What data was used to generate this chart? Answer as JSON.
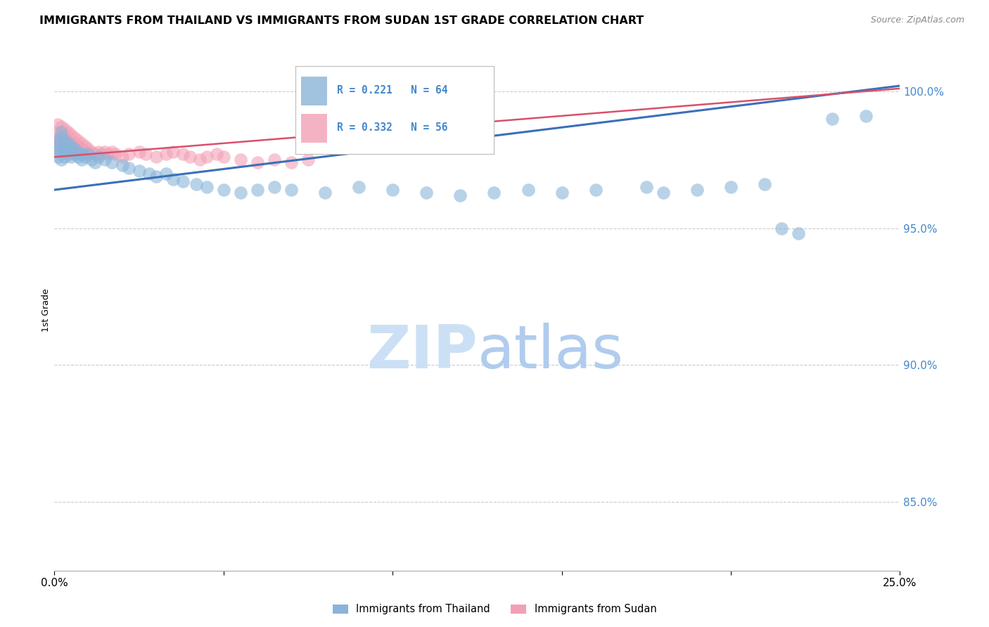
{
  "title": "IMMIGRANTS FROM THAILAND VS IMMIGRANTS FROM SUDAN 1ST GRADE CORRELATION CHART",
  "source": "Source: ZipAtlas.com",
  "ylabel": "1st Grade",
  "ytick_labels": [
    "85.0%",
    "90.0%",
    "95.0%",
    "100.0%"
  ],
  "ytick_values": [
    0.85,
    0.9,
    0.95,
    1.0
  ],
  "xlim": [
    0.0,
    0.25
  ],
  "ylim": [
    0.825,
    1.015
  ],
  "legend_thailand": "R = 0.221   N = 64",
  "legend_sudan": "R = 0.332   N = 56",
  "thailand_color": "#8ab4d9",
  "sudan_color": "#f2a0b5",
  "thailand_line_color": "#3a70b8",
  "sudan_line_color": "#d9506a",
  "watermark_zip": "ZIP",
  "watermark_atlas": "atlas",
  "watermark_color": "#cce0f5",
  "background_color": "#ffffff",
  "grid_color": "#cccccc",
  "right_axis_color": "#4488cc",
  "thailand_scatter_x": [
    0.001,
    0.001,
    0.001,
    0.001,
    0.002,
    0.002,
    0.002,
    0.002,
    0.003,
    0.003,
    0.003,
    0.003,
    0.004,
    0.004,
    0.004,
    0.005,
    0.005,
    0.005,
    0.006,
    0.006,
    0.007,
    0.007,
    0.008,
    0.008,
    0.009,
    0.01,
    0.011,
    0.012,
    0.013,
    0.015,
    0.017,
    0.02,
    0.022,
    0.025,
    0.028,
    0.03,
    0.033,
    0.035,
    0.038,
    0.042,
    0.045,
    0.05,
    0.055,
    0.06,
    0.065,
    0.07,
    0.08,
    0.09,
    0.1,
    0.11,
    0.12,
    0.13,
    0.14,
    0.15,
    0.16,
    0.175,
    0.18,
    0.19,
    0.2,
    0.21,
    0.215,
    0.22,
    0.23,
    0.24
  ],
  "thailand_scatter_y": [
    0.98,
    0.982,
    0.978,
    0.976,
    0.985,
    0.983,
    0.979,
    0.975,
    0.982,
    0.98,
    0.978,
    0.976,
    0.981,
    0.979,
    0.977,
    0.98,
    0.978,
    0.976,
    0.979,
    0.977,
    0.978,
    0.976,
    0.977,
    0.975,
    0.976,
    0.977,
    0.975,
    0.974,
    0.976,
    0.975,
    0.974,
    0.973,
    0.972,
    0.971,
    0.97,
    0.969,
    0.97,
    0.968,
    0.967,
    0.966,
    0.965,
    0.964,
    0.963,
    0.964,
    0.965,
    0.964,
    0.963,
    0.965,
    0.964,
    0.963,
    0.962,
    0.963,
    0.964,
    0.963,
    0.964,
    0.965,
    0.963,
    0.964,
    0.965,
    0.966,
    0.95,
    0.948,
    0.99,
    0.991
  ],
  "sudan_scatter_x": [
    0.001,
    0.001,
    0.001,
    0.001,
    0.001,
    0.002,
    0.002,
    0.002,
    0.002,
    0.003,
    0.003,
    0.003,
    0.003,
    0.004,
    0.004,
    0.004,
    0.005,
    0.005,
    0.005,
    0.006,
    0.006,
    0.006,
    0.007,
    0.007,
    0.007,
    0.008,
    0.008,
    0.009,
    0.009,
    0.01,
    0.011,
    0.012,
    0.013,
    0.014,
    0.015,
    0.016,
    0.017,
    0.018,
    0.02,
    0.022,
    0.025,
    0.027,
    0.03,
    0.033,
    0.035,
    0.038,
    0.04,
    0.043,
    0.045,
    0.048,
    0.05,
    0.055,
    0.06,
    0.065,
    0.07,
    0.075
  ],
  "sudan_scatter_y": [
    0.988,
    0.985,
    0.983,
    0.981,
    0.979,
    0.987,
    0.984,
    0.982,
    0.98,
    0.986,
    0.983,
    0.981,
    0.979,
    0.985,
    0.982,
    0.98,
    0.984,
    0.981,
    0.979,
    0.983,
    0.981,
    0.979,
    0.982,
    0.98,
    0.978,
    0.981,
    0.979,
    0.98,
    0.978,
    0.979,
    0.978,
    0.977,
    0.978,
    0.977,
    0.978,
    0.977,
    0.978,
    0.977,
    0.976,
    0.977,
    0.978,
    0.977,
    0.976,
    0.977,
    0.978,
    0.977,
    0.976,
    0.975,
    0.976,
    0.977,
    0.976,
    0.975,
    0.974,
    0.975,
    0.974,
    0.975
  ],
  "thailand_line_x": [
    0.0,
    0.25
  ],
  "thailand_line_y": [
    0.964,
    1.002
  ],
  "sudan_line_x": [
    0.0,
    0.25
  ],
  "sudan_line_y": [
    0.976,
    1.001
  ]
}
